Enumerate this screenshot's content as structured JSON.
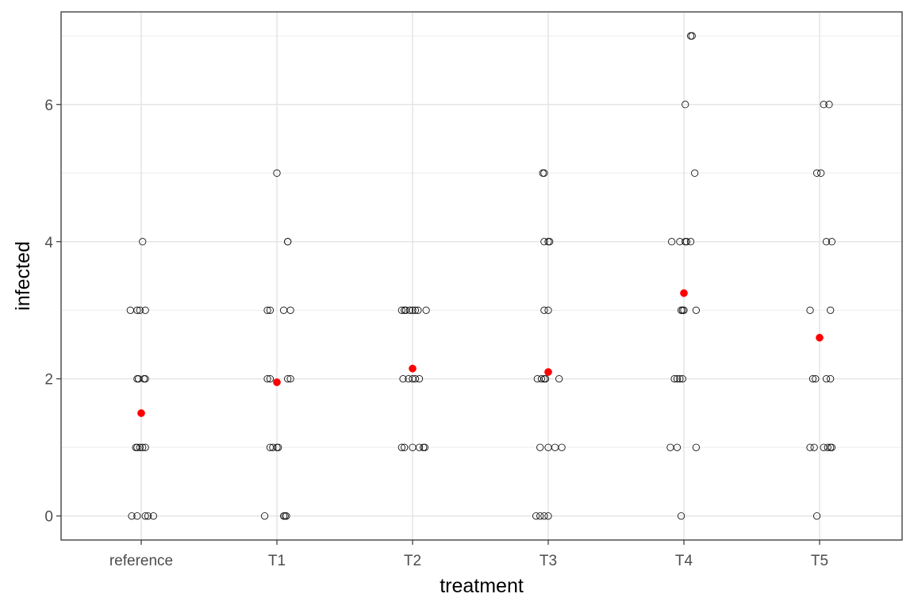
{
  "chart_data": {
    "type": "scatter",
    "xlabel": "treatment",
    "ylabel": "infected",
    "categories": [
      "reference",
      "T1",
      "T2",
      "T3",
      "T4",
      "T5"
    ],
    "yticks": [
      0,
      2,
      4,
      6
    ],
    "ylim": [
      -0.35,
      7.35
    ],
    "grid": true,
    "legend": "none",
    "series": [
      {
        "marker": "open-circle",
        "color": "#000000",
        "points": [
          {
            "category": "reference",
            "jitter": -0.08,
            "y": 3
          },
          {
            "category": "reference",
            "jitter": -0.03,
            "y": 3
          },
          {
            "category": "reference",
            "jitter": -0.01,
            "y": 3
          },
          {
            "category": "reference",
            "jitter": 0.03,
            "y": 3
          },
          {
            "category": "reference",
            "jitter": 0.01,
            "y": 4
          },
          {
            "category": "reference",
            "jitter": -0.03,
            "y": 2
          },
          {
            "category": "reference",
            "jitter": -0.02,
            "y": 2
          },
          {
            "category": "reference",
            "jitter": 0.02,
            "y": 2
          },
          {
            "category": "reference",
            "jitter": 0.03,
            "y": 2
          },
          {
            "category": "reference",
            "jitter": -0.04,
            "y": 1
          },
          {
            "category": "reference",
            "jitter": -0.03,
            "y": 1
          },
          {
            "category": "reference",
            "jitter": -0.01,
            "y": 1
          },
          {
            "category": "reference",
            "jitter": 0.01,
            "y": 1
          },
          {
            "category": "reference",
            "jitter": 0.03,
            "y": 1
          },
          {
            "category": "reference",
            "jitter": -0.07,
            "y": 0
          },
          {
            "category": "reference",
            "jitter": -0.03,
            "y": 0
          },
          {
            "category": "reference",
            "jitter": 0.03,
            "y": 0
          },
          {
            "category": "reference",
            "jitter": 0.05,
            "y": 0
          },
          {
            "category": "reference",
            "jitter": 0.09,
            "y": 0
          },
          {
            "category": "T1",
            "jitter": 0.0,
            "y": 5
          },
          {
            "category": "T1",
            "jitter": 0.08,
            "y": 4
          },
          {
            "category": "T1",
            "jitter": 0.08,
            "y": 4
          },
          {
            "category": "T1",
            "jitter": -0.07,
            "y": 3
          },
          {
            "category": "T1",
            "jitter": -0.05,
            "y": 3
          },
          {
            "category": "T1",
            "jitter": 0.05,
            "y": 3
          },
          {
            "category": "T1",
            "jitter": 0.1,
            "y": 3
          },
          {
            "category": "T1",
            "jitter": -0.07,
            "y": 2
          },
          {
            "category": "T1",
            "jitter": -0.05,
            "y": 2
          },
          {
            "category": "T1",
            "jitter": 0.08,
            "y": 2
          },
          {
            "category": "T1",
            "jitter": 0.1,
            "y": 2
          },
          {
            "category": "T1",
            "jitter": -0.05,
            "y": 1
          },
          {
            "category": "T1",
            "jitter": -0.03,
            "y": 1
          },
          {
            "category": "T1",
            "jitter": 0.0,
            "y": 1
          },
          {
            "category": "T1",
            "jitter": 0.01,
            "y": 1
          },
          {
            "category": "T1",
            "jitter": -0.09,
            "y": 0
          },
          {
            "category": "T1",
            "jitter": 0.05,
            "y": 0
          },
          {
            "category": "T1",
            "jitter": 0.06,
            "y": 0
          },
          {
            "category": "T1",
            "jitter": 0.07,
            "y": 0
          },
          {
            "category": "T2",
            "jitter": -0.08,
            "y": 3
          },
          {
            "category": "T2",
            "jitter": -0.06,
            "y": 3
          },
          {
            "category": "T2",
            "jitter": -0.05,
            "y": 3
          },
          {
            "category": "T2",
            "jitter": -0.02,
            "y": 3
          },
          {
            "category": "T2",
            "jitter": 0.0,
            "y": 3
          },
          {
            "category": "T2",
            "jitter": 0.02,
            "y": 3
          },
          {
            "category": "T2",
            "jitter": 0.04,
            "y": 3
          },
          {
            "category": "T2",
            "jitter": 0.1,
            "y": 3
          },
          {
            "category": "T2",
            "jitter": -0.07,
            "y": 2
          },
          {
            "category": "T2",
            "jitter": -0.03,
            "y": 2
          },
          {
            "category": "T2",
            "jitter": 0.0,
            "y": 2
          },
          {
            "category": "T2",
            "jitter": 0.02,
            "y": 2
          },
          {
            "category": "T2",
            "jitter": 0.05,
            "y": 2
          },
          {
            "category": "T2",
            "jitter": -0.08,
            "y": 1
          },
          {
            "category": "T2",
            "jitter": -0.06,
            "y": 1
          },
          {
            "category": "T2",
            "jitter": 0.0,
            "y": 1
          },
          {
            "category": "T2",
            "jitter": 0.05,
            "y": 1
          },
          {
            "category": "T2",
            "jitter": 0.08,
            "y": 1
          },
          {
            "category": "T2",
            "jitter": 0.09,
            "y": 1
          },
          {
            "category": "T3",
            "jitter": -0.04,
            "y": 5
          },
          {
            "category": "T3",
            "jitter": -0.03,
            "y": 5
          },
          {
            "category": "T3",
            "jitter": -0.03,
            "y": 4
          },
          {
            "category": "T3",
            "jitter": 0.0,
            "y": 4
          },
          {
            "category": "T3",
            "jitter": 0.01,
            "y": 4
          },
          {
            "category": "T3",
            "jitter": -0.03,
            "y": 3
          },
          {
            "category": "T3",
            "jitter": 0.0,
            "y": 3
          },
          {
            "category": "T3",
            "jitter": -0.08,
            "y": 2
          },
          {
            "category": "T3",
            "jitter": -0.05,
            "y": 2
          },
          {
            "category": "T3",
            "jitter": -0.03,
            "y": 2
          },
          {
            "category": "T3",
            "jitter": -0.02,
            "y": 2
          },
          {
            "category": "T3",
            "jitter": 0.08,
            "y": 2
          },
          {
            "category": "T3",
            "jitter": -0.06,
            "y": 1
          },
          {
            "category": "T3",
            "jitter": 0.0,
            "y": 1
          },
          {
            "category": "T3",
            "jitter": 0.05,
            "y": 1
          },
          {
            "category": "T3",
            "jitter": 0.1,
            "y": 1
          },
          {
            "category": "T3",
            "jitter": -0.09,
            "y": 0
          },
          {
            "category": "T3",
            "jitter": -0.06,
            "y": 0
          },
          {
            "category": "T3",
            "jitter": -0.03,
            "y": 0
          },
          {
            "category": "T3",
            "jitter": 0.0,
            "y": 0
          },
          {
            "category": "T4",
            "jitter": 0.06,
            "y": 7
          },
          {
            "category": "T4",
            "jitter": 0.05,
            "y": 7
          },
          {
            "category": "T4",
            "jitter": 0.01,
            "y": 6
          },
          {
            "category": "T4",
            "jitter": 0.08,
            "y": 5
          },
          {
            "category": "T4",
            "jitter": -0.09,
            "y": 4
          },
          {
            "category": "T4",
            "jitter": -0.03,
            "y": 4
          },
          {
            "category": "T4",
            "jitter": 0.01,
            "y": 4
          },
          {
            "category": "T4",
            "jitter": 0.02,
            "y": 4
          },
          {
            "category": "T4",
            "jitter": 0.05,
            "y": 4
          },
          {
            "category": "T4",
            "jitter": -0.02,
            "y": 3
          },
          {
            "category": "T4",
            "jitter": -0.01,
            "y": 3
          },
          {
            "category": "T4",
            "jitter": 0.0,
            "y": 3
          },
          {
            "category": "T4",
            "jitter": 0.09,
            "y": 3
          },
          {
            "category": "T4",
            "jitter": -0.07,
            "y": 2
          },
          {
            "category": "T4",
            "jitter": -0.05,
            "y": 2
          },
          {
            "category": "T4",
            "jitter": -0.03,
            "y": 2
          },
          {
            "category": "T4",
            "jitter": -0.01,
            "y": 2
          },
          {
            "category": "T4",
            "jitter": -0.1,
            "y": 1
          },
          {
            "category": "T4",
            "jitter": -0.05,
            "y": 1
          },
          {
            "category": "T4",
            "jitter": 0.09,
            "y": 1
          },
          {
            "category": "T4",
            "jitter": -0.02,
            "y": 0
          },
          {
            "category": "T5",
            "jitter": 0.03,
            "y": 6
          },
          {
            "category": "T5",
            "jitter": 0.07,
            "y": 6
          },
          {
            "category": "T5",
            "jitter": -0.02,
            "y": 5
          },
          {
            "category": "T5",
            "jitter": 0.01,
            "y": 5
          },
          {
            "category": "T5",
            "jitter": 0.05,
            "y": 4
          },
          {
            "category": "T5",
            "jitter": 0.09,
            "y": 4
          },
          {
            "category": "T5",
            "jitter": -0.07,
            "y": 3
          },
          {
            "category": "T5",
            "jitter": 0.08,
            "y": 3
          },
          {
            "category": "T5",
            "jitter": -0.05,
            "y": 2
          },
          {
            "category": "T5",
            "jitter": -0.03,
            "y": 2
          },
          {
            "category": "T5",
            "jitter": 0.05,
            "y": 2
          },
          {
            "category": "T5",
            "jitter": 0.08,
            "y": 2
          },
          {
            "category": "T5",
            "jitter": -0.07,
            "y": 1
          },
          {
            "category": "T5",
            "jitter": -0.04,
            "y": 1
          },
          {
            "category": "T5",
            "jitter": 0.03,
            "y": 1
          },
          {
            "category": "T5",
            "jitter": 0.06,
            "y": 1
          },
          {
            "category": "T5",
            "jitter": 0.08,
            "y": 1
          },
          {
            "category": "T5",
            "jitter": 0.09,
            "y": 1
          },
          {
            "category": "T5",
            "jitter": -0.02,
            "y": 0
          }
        ]
      },
      {
        "marker": "filled-circle",
        "color": "#ff0000",
        "points": [
          {
            "category": "reference",
            "jitter": 0,
            "y": 1.5
          },
          {
            "category": "T1",
            "jitter": 0,
            "y": 1.95
          },
          {
            "category": "T2",
            "jitter": 0,
            "y": 2.15
          },
          {
            "category": "T3",
            "jitter": 0,
            "y": 2.1
          },
          {
            "category": "T4",
            "jitter": 0,
            "y": 3.25
          },
          {
            "category": "T5",
            "jitter": 0,
            "y": 2.6
          }
        ]
      }
    ]
  }
}
